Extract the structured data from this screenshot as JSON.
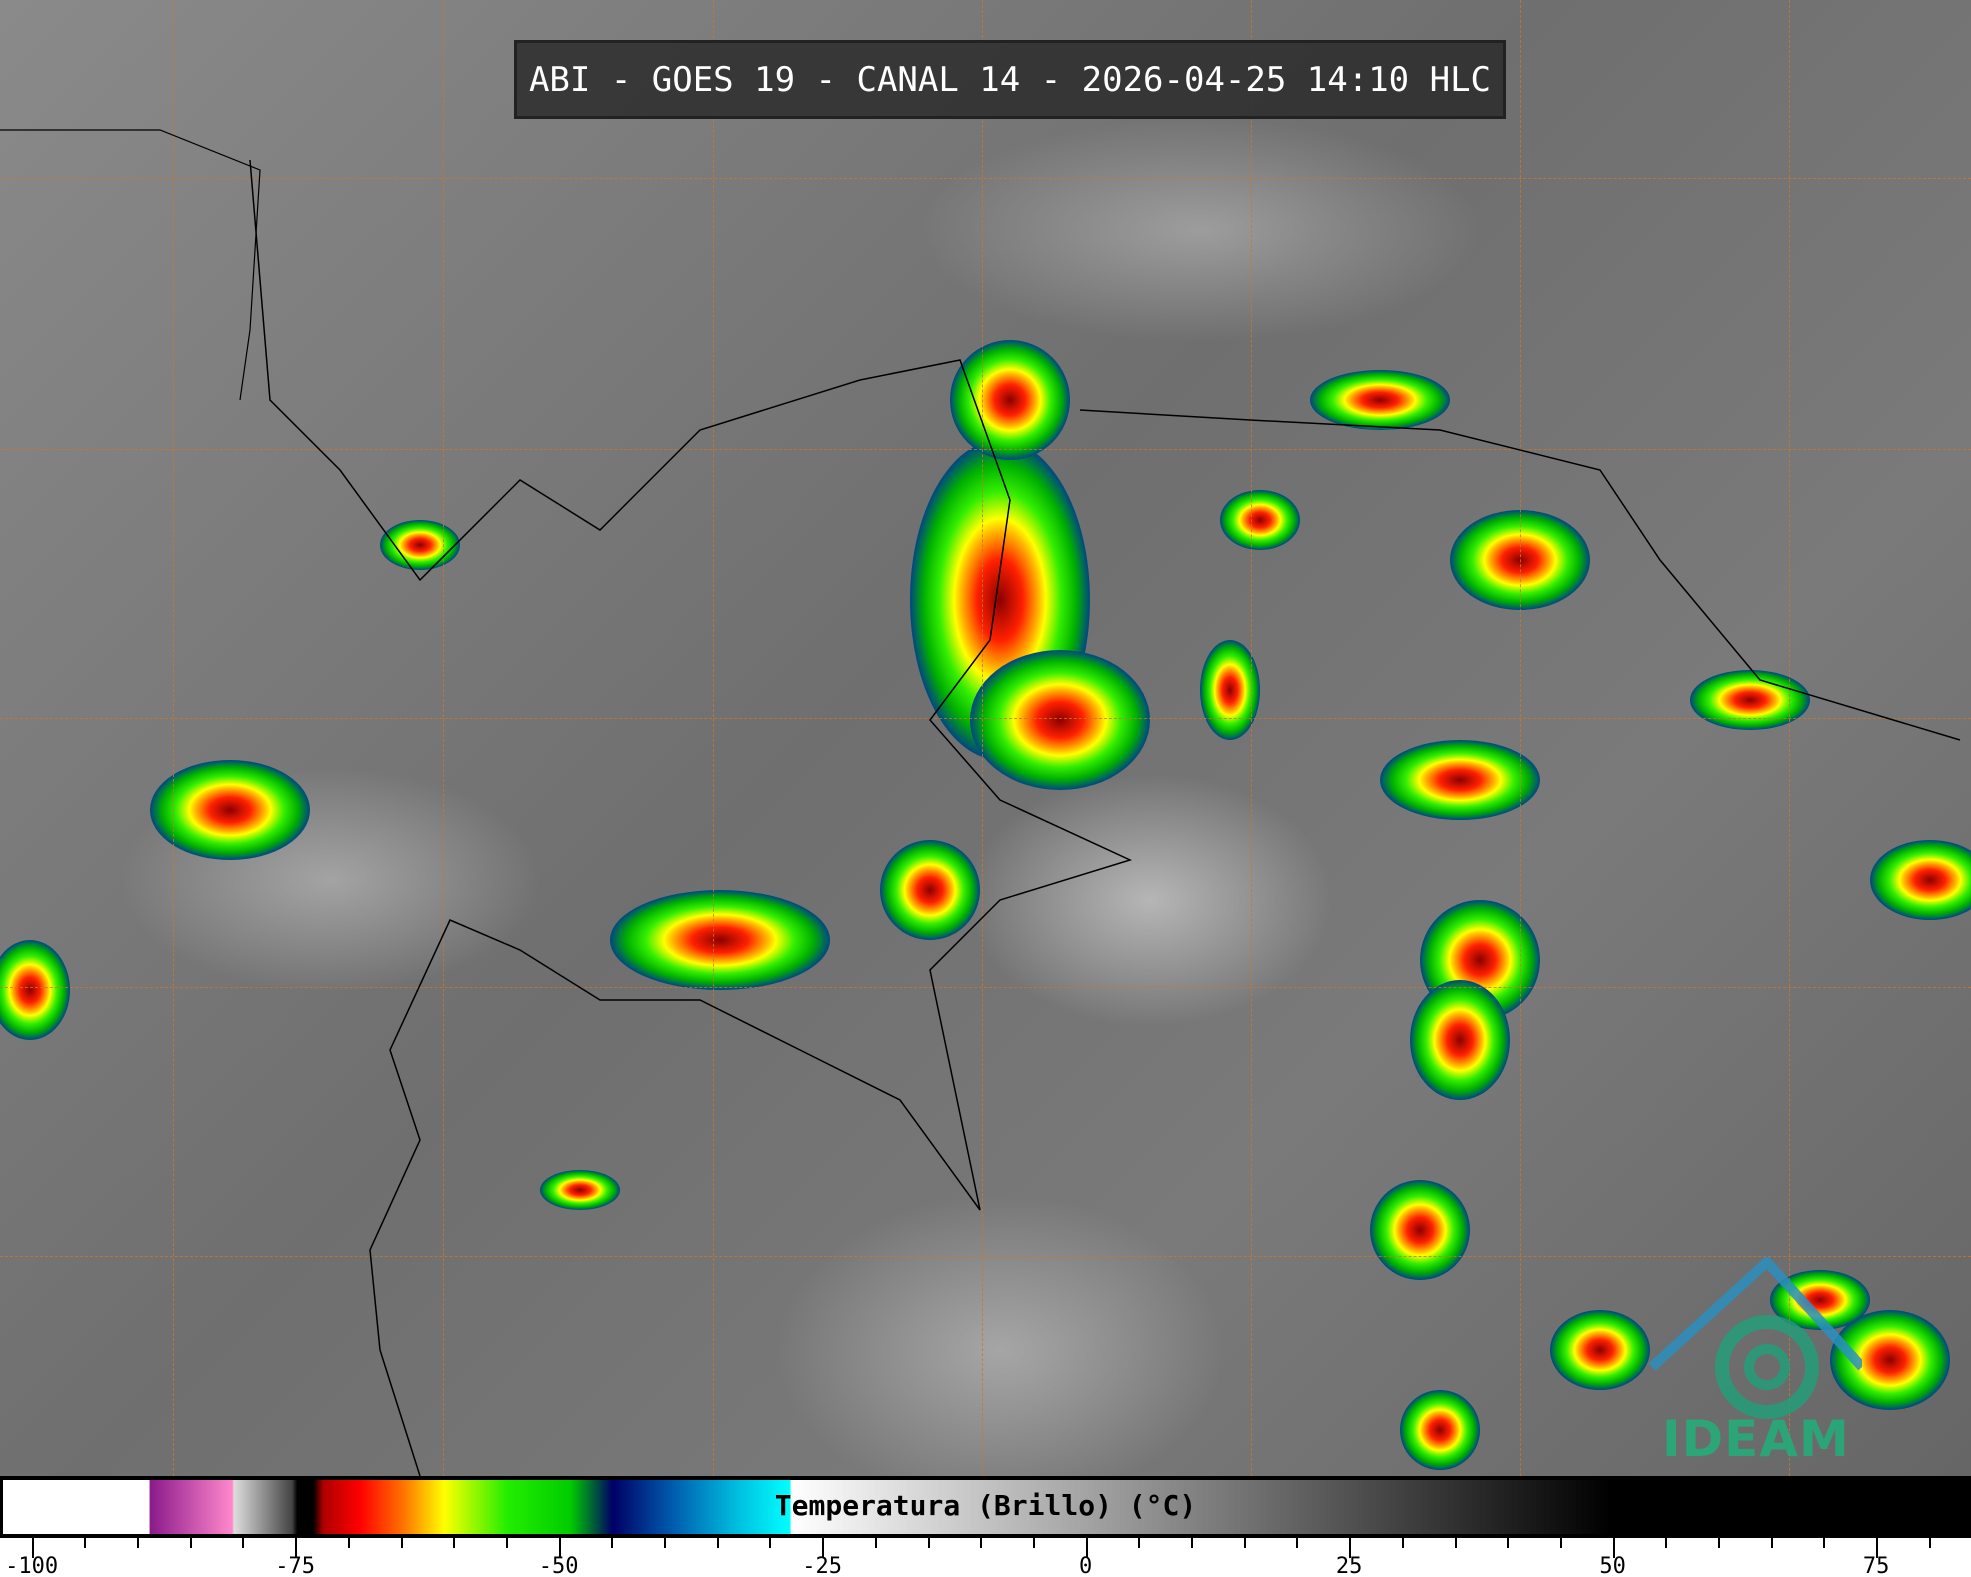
{
  "title": "ABI - GOES 19 - CANAL 14 - 2026-04-25 14:10 HLC",
  "logo_text": "IDEAM",
  "colorbar": {
    "label": "Temperatura (Brillo) (°C)",
    "range": [
      -103,
      84
    ],
    "major_ticks": [
      -100,
      -75,
      -50,
      -25,
      0,
      25,
      50,
      75
    ],
    "minor_tick_step": 5,
    "stops": [
      {
        "t": -103,
        "color": "#ffffff"
      },
      {
        "t": -89.1,
        "color": "#ffffff"
      },
      {
        "t": -89,
        "color": "#8b1a8b"
      },
      {
        "t": -81.2,
        "color": "#ff88cc"
      },
      {
        "t": -81,
        "color": "#dddddd"
      },
      {
        "t": -75.5,
        "color": "#444444"
      },
      {
        "t": -75,
        "color": "#000000"
      },
      {
        "t": -73.5,
        "color": "#000000"
      },
      {
        "t": -72.5,
        "color": "#b00000"
      },
      {
        "t": -69,
        "color": "#ff0000"
      },
      {
        "t": -65,
        "color": "#ff7000"
      },
      {
        "t": -61,
        "color": "#ffff00"
      },
      {
        "t": -55,
        "color": "#22ee00"
      },
      {
        "t": -49,
        "color": "#00cc00"
      },
      {
        "t": -45,
        "color": "#000066"
      },
      {
        "t": -39,
        "color": "#0060b0"
      },
      {
        "t": -33,
        "color": "#00c0e0"
      },
      {
        "t": -28.1,
        "color": "#00ffff"
      },
      {
        "t": -28,
        "color": "#ffffff"
      },
      {
        "t": 50,
        "color": "#000000"
      },
      {
        "t": 84,
        "color": "#000000"
      }
    ]
  },
  "map": {
    "graticule_color": "#c8782f",
    "storm_colors": [
      "#00ff00",
      "#ffff00",
      "#ff3000",
      "#b00000",
      "#0050a0",
      "#00e0ff"
    ]
  }
}
